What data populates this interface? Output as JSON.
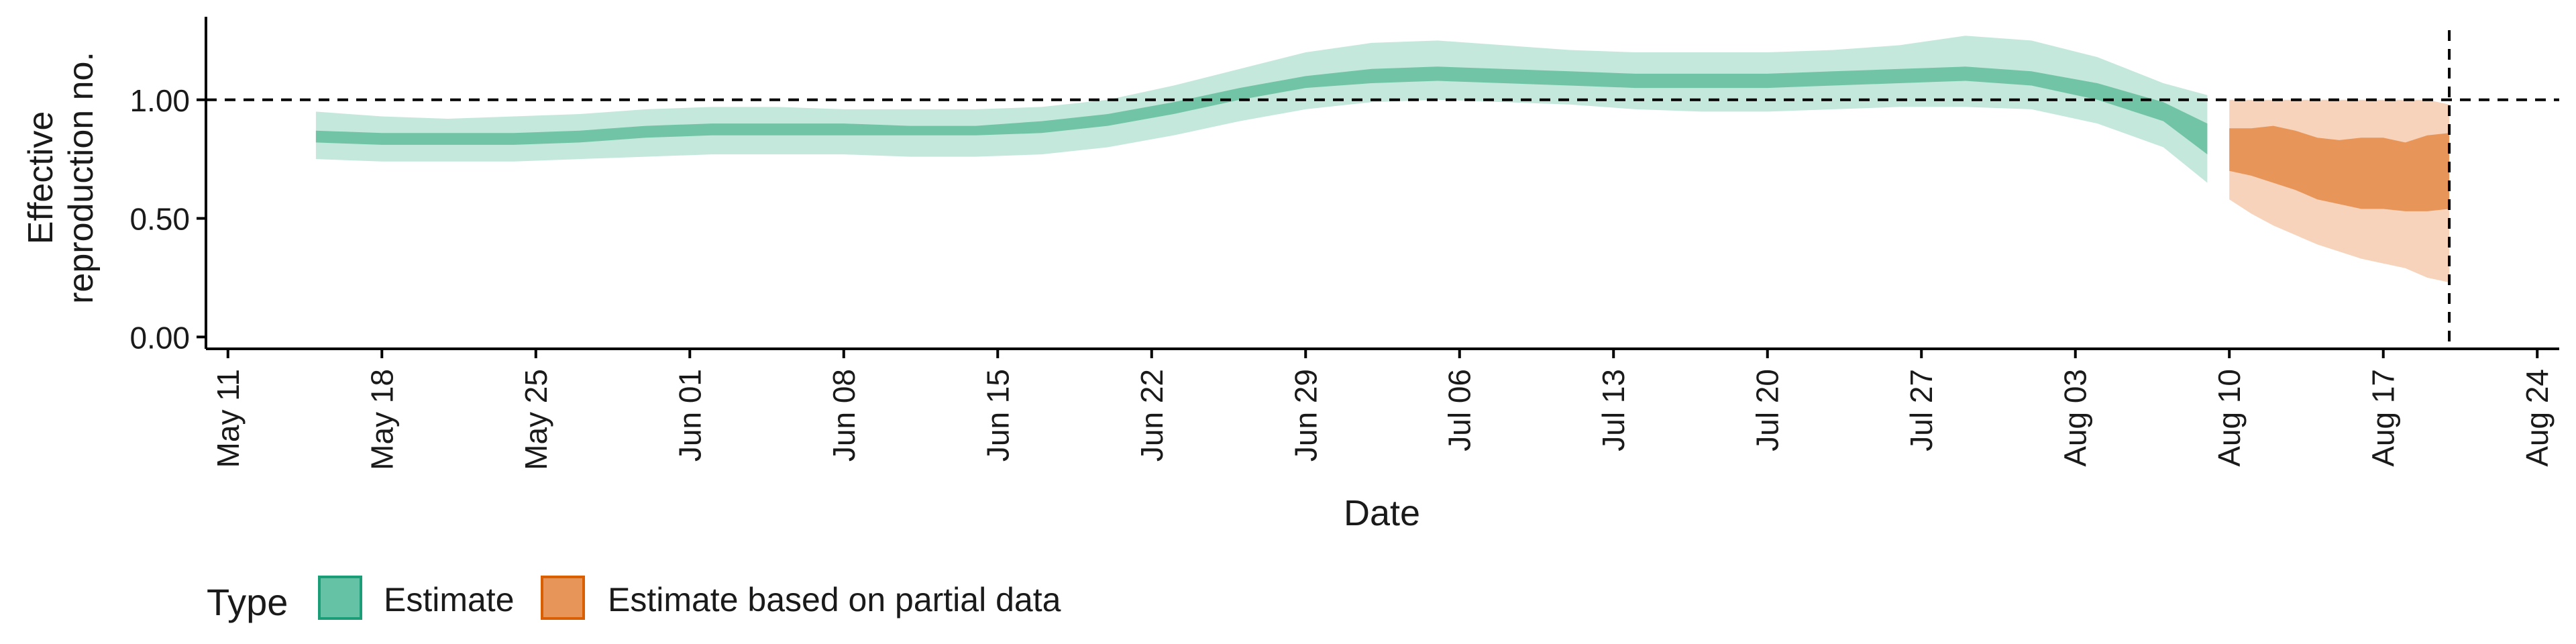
{
  "chart_data": {
    "type": "area",
    "ylabel": "Effective\nreproduction no.",
    "xlabel": "Date",
    "legend": {
      "title": "Type",
      "placement": "bottom-left",
      "entries": [
        {
          "label": "Estimate",
          "color": "#66c2a5",
          "border": "#1b9e77"
        },
        {
          "label": "Estimate based on partial data",
          "color": "#e8955a",
          "border": "#d95f02"
        }
      ]
    },
    "y_ticks": [
      "0.00",
      "0.50",
      "1.00"
    ],
    "y_tick_values": [
      0,
      0.5,
      1.0
    ],
    "ylim": [
      -0.05,
      1.35
    ],
    "x_ticks": [
      "May 11",
      "May 18",
      "May 25",
      "Jun 01",
      "Jun 08",
      "Jun 15",
      "Jun 22",
      "Jun 29",
      "Jul 06",
      "Jul 13",
      "Jul 20",
      "Jul 27",
      "Aug 03",
      "Aug 10",
      "Aug 17",
      "Aug 24"
    ],
    "x_tick_dates": [
      "2020-05-11",
      "2020-05-18",
      "2020-05-25",
      "2020-06-01",
      "2020-06-08",
      "2020-06-15",
      "2020-06-22",
      "2020-06-29",
      "2020-07-06",
      "2020-07-13",
      "2020-07-20",
      "2020-07-27",
      "2020-08-03",
      "2020-08-10",
      "2020-08-17",
      "2020-08-24"
    ],
    "xlim": [
      "2020-05-10",
      "2020-08-25"
    ],
    "reference_lines": {
      "horizontal_y": 1.0,
      "vertical_date": "2020-08-20"
    },
    "grid": false,
    "colors": {
      "estimate_outer": "#c5e8dc",
      "estimate_inner": "#72c4a6",
      "partial_outer": "#f6d3ba",
      "partial_inner": "#e8955a"
    },
    "series": [
      {
        "name": "Estimate",
        "dates": [
          "2020-05-15",
          "2020-05-18",
          "2020-05-21",
          "2020-05-24",
          "2020-05-27",
          "2020-05-30",
          "2020-06-02",
          "2020-06-05",
          "2020-06-08",
          "2020-06-11",
          "2020-06-14",
          "2020-06-17",
          "2020-06-20",
          "2020-06-23",
          "2020-06-26",
          "2020-06-29",
          "2020-07-02",
          "2020-07-05",
          "2020-07-08",
          "2020-07-11",
          "2020-07-14",
          "2020-07-17",
          "2020-07-20",
          "2020-07-23",
          "2020-07-26",
          "2020-07-29",
          "2020-08-01",
          "2020-08-04",
          "2020-08-07",
          "2020-08-09"
        ],
        "outer_lower": [
          0.75,
          0.74,
          0.74,
          0.74,
          0.75,
          0.76,
          0.77,
          0.77,
          0.77,
          0.76,
          0.76,
          0.77,
          0.8,
          0.85,
          0.91,
          0.96,
          0.99,
          1.0,
          0.99,
          0.98,
          0.96,
          0.95,
          0.95,
          0.96,
          0.97,
          0.97,
          0.96,
          0.9,
          0.8,
          0.65
        ],
        "outer_upper": [
          0.95,
          0.93,
          0.92,
          0.93,
          0.94,
          0.96,
          0.97,
          0.97,
          0.96,
          0.96,
          0.96,
          0.97,
          1.0,
          1.06,
          1.13,
          1.2,
          1.24,
          1.25,
          1.23,
          1.21,
          1.2,
          1.2,
          1.2,
          1.21,
          1.23,
          1.27,
          1.25,
          1.18,
          1.07,
          1.02
        ],
        "inner_lower": [
          0.82,
          0.81,
          0.81,
          0.81,
          0.82,
          0.84,
          0.85,
          0.85,
          0.85,
          0.85,
          0.85,
          0.86,
          0.89,
          0.94,
          1.0,
          1.05,
          1.07,
          1.08,
          1.07,
          1.06,
          1.05,
          1.05,
          1.05,
          1.06,
          1.07,
          1.08,
          1.06,
          1.0,
          0.91,
          0.77
        ],
        "inner_upper": [
          0.87,
          0.86,
          0.86,
          0.86,
          0.87,
          0.89,
          0.9,
          0.9,
          0.9,
          0.89,
          0.89,
          0.91,
          0.94,
          0.99,
          1.05,
          1.1,
          1.13,
          1.14,
          1.13,
          1.12,
          1.11,
          1.11,
          1.11,
          1.12,
          1.13,
          1.14,
          1.12,
          1.07,
          0.99,
          0.9
        ]
      },
      {
        "name": "Estimate based on partial data",
        "dates": [
          "2020-08-10",
          "2020-08-11",
          "2020-08-12",
          "2020-08-13",
          "2020-08-14",
          "2020-08-15",
          "2020-08-16",
          "2020-08-17",
          "2020-08-18",
          "2020-08-19",
          "2020-08-20"
        ],
        "outer_lower": [
          0.58,
          0.52,
          0.47,
          0.43,
          0.39,
          0.36,
          0.33,
          0.31,
          0.29,
          0.25,
          0.23
        ],
        "outer_upper": [
          1.0,
          1.0,
          1.0,
          1.0,
          1.0,
          1.0,
          1.0,
          1.0,
          1.0,
          1.0,
          0.98
        ],
        "inner_lower": [
          0.7,
          0.68,
          0.65,
          0.62,
          0.58,
          0.56,
          0.54,
          0.54,
          0.53,
          0.53,
          0.54
        ],
        "inner_upper": [
          0.88,
          0.88,
          0.89,
          0.87,
          0.84,
          0.83,
          0.84,
          0.84,
          0.82,
          0.85,
          0.86
        ]
      }
    ]
  }
}
